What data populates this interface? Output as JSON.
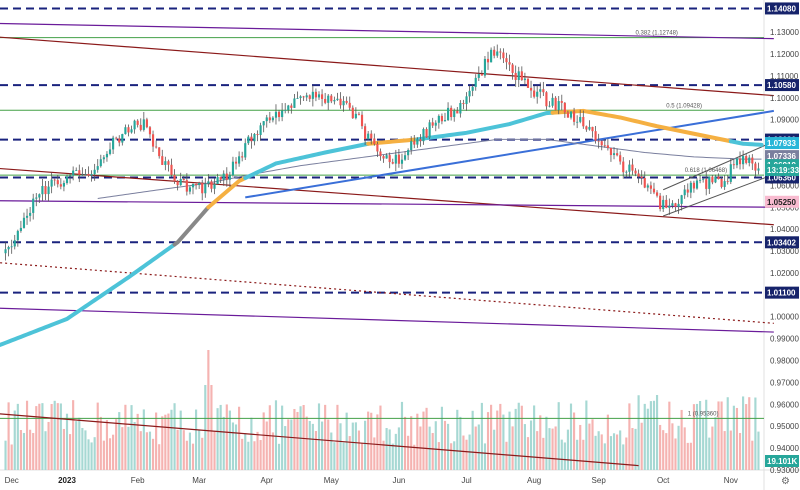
{
  "colors": {
    "up": "#26a69a",
    "down": "#ef5350",
    "wick": "#555555",
    "levels": "#1a237e",
    "fib": "#43a047",
    "channel": "#8b1a1a",
    "trend": "#6a1b9a",
    "ma_fast": "#4dc3d8",
    "ma_fast_alt": "#f5b042",
    "trendline_blue": "#3a6fd8",
    "ma_slow": "#7a7f9e",
    "price_badge": "#26a69a",
    "navy_badge": "#16236b"
  },
  "chart_data": {
    "type": "candlestick",
    "title": "",
    "y_axis": {
      "min": 0.93,
      "max": 1.141,
      "position": "right",
      "ticks": [
        "1.13000",
        "1.12000",
        "1.11000",
        "1.10000",
        "1.09000",
        "1.08000",
        "1.07000",
        "1.06000",
        "1.05000",
        "1.04000",
        "1.03000",
        "1.02000",
        "1.01000",
        "1.00000",
        "0.99000",
        "0.98000",
        "0.97000",
        "0.96000",
        "0.95000",
        "0.94000",
        "0.93000"
      ]
    },
    "x_axis": {
      "labels": [
        {
          "label": "Dec",
          "index": 2,
          "year": false
        },
        {
          "label": "2023",
          "index": 20,
          "year": true
        },
        {
          "label": "Feb",
          "index": 43,
          "year": false
        },
        {
          "label": "Mar",
          "index": 63,
          "year": false
        },
        {
          "label": "Apr",
          "index": 85,
          "year": false
        },
        {
          "label": "May",
          "index": 106,
          "year": false
        },
        {
          "label": "Jun",
          "index": 128,
          "year": false
        },
        {
          "label": "Jul",
          "index": 150,
          "year": false
        },
        {
          "label": "Aug",
          "index": 172,
          "year": false
        },
        {
          "label": "Sep",
          "index": 193,
          "year": false
        },
        {
          "label": "Oct",
          "index": 214,
          "year": false
        },
        {
          "label": "Nov",
          "index": 236,
          "year": false
        }
      ]
    },
    "candles_count": 246,
    "close_anchors": [
      [
        0,
        1.029
      ],
      [
        4,
        1.039
      ],
      [
        10,
        1.056
      ],
      [
        16,
        1.061
      ],
      [
        22,
        1.064
      ],
      [
        28,
        1.065
      ],
      [
        34,
        1.079
      ],
      [
        40,
        1.086
      ],
      [
        45,
        1.088
      ],
      [
        50,
        1.073
      ],
      [
        55,
        1.064
      ],
      [
        60,
        1.058
      ],
      [
        66,
        1.06
      ],
      [
        72,
        1.064
      ],
      [
        78,
        1.078
      ],
      [
        84,
        1.088
      ],
      [
        90,
        1.095
      ],
      [
        96,
        1.101
      ],
      [
        102,
        1.101
      ],
      [
        108,
        1.1
      ],
      [
        114,
        1.092
      ],
      [
        120,
        1.076
      ],
      [
        126,
        1.07
      ],
      [
        132,
        1.078
      ],
      [
        138,
        1.086
      ],
      [
        144,
        1.093
      ],
      [
        150,
        1.098
      ],
      [
        156,
        1.115
      ],
      [
        160,
        1.123
      ],
      [
        164,
        1.114
      ],
      [
        170,
        1.105
      ],
      [
        176,
        1.099
      ],
      [
        182,
        1.095
      ],
      [
        188,
        1.087
      ],
      [
        194,
        1.079
      ],
      [
        200,
        1.07
      ],
      [
        206,
        1.063
      ],
      [
        212,
        1.053
      ],
      [
        216,
        1.048
      ],
      [
        222,
        1.058
      ],
      [
        228,
        1.061
      ],
      [
        234,
        1.062
      ],
      [
        238,
        1.072
      ],
      [
        242,
        1.07
      ],
      [
        245,
        1.0692
      ]
    ],
    "horizontal_levels": [
      {
        "value": 1.1408,
        "label": "1.14080",
        "style": "dashed"
      },
      {
        "value": 1.1058,
        "label": "1.10580",
        "style": "dashed"
      },
      {
        "value": 1.0809,
        "label": "1.08090",
        "style": "dashed"
      },
      {
        "value": 1.0636,
        "label": "1.06360",
        "style": "dashed"
      },
      {
        "value": 1.034,
        "label": "1.03402",
        "style": "dashed"
      },
      {
        "value": 1.011,
        "label": "1.01100",
        "style": "dashed"
      }
    ],
    "fib_levels": [
      {
        "value": 1.12748,
        "label": "0.382 (1.12748)",
        "text_index": 205
      },
      {
        "value": 1.09428,
        "label": "0.5 (1.09428)",
        "text_index": 215
      },
      {
        "value": 1.06468,
        "label": "0.618 (1.06468)",
        "text_index": 221
      },
      {
        "value": 0.9536,
        "label": "1 (0.95360)",
        "text_index": 222
      }
    ],
    "trendlines": [
      {
        "kind": "channel",
        "from": [
          -5,
          1.128
        ],
        "to": [
          250,
          1.101
        ]
      },
      {
        "kind": "channel",
        "from": [
          -5,
          1.068
        ],
        "to": [
          250,
          1.042
        ]
      },
      {
        "kind": "trend",
        "from": [
          -5,
          1.134
        ],
        "to": [
          250,
          1.127
        ]
      },
      {
        "kind": "trend",
        "from": [
          -5,
          1.053
        ],
        "to": [
          250,
          1.05
        ]
      },
      {
        "kind": "trend",
        "from": [
          -5,
          1.004
        ],
        "to": [
          250,
          0.993
        ]
      },
      {
        "kind": "channel_dotted",
        "from": [
          -5,
          1.025
        ],
        "to": [
          250,
          0.997
        ]
      },
      {
        "kind": "channel",
        "from": [
          -5,
          0.956
        ],
        "to": [
          206,
          0.932
        ]
      },
      {
        "kind": "blue",
        "from": [
          78,
          1.0545
        ],
        "to": [
          250,
          1.094
        ]
      },
      {
        "kind": "wedge",
        "from": [
          214,
          1.058
        ],
        "to": [
          250,
          1.08
        ]
      },
      {
        "kind": "wedge",
        "from": [
          214,
          1.046
        ],
        "to": [
          250,
          1.065
        ]
      }
    ],
    "ma_fast_anchors": [
      [
        -2,
        0.987
      ],
      [
        20,
        0.999
      ],
      [
        40,
        1.018
      ],
      [
        56,
        1.034
      ],
      [
        66,
        1.05
      ],
      [
        76,
        1.062
      ],
      [
        88,
        1.07
      ],
      [
        104,
        1.075
      ],
      [
        118,
        1.079
      ],
      [
        134,
        1.081
      ],
      [
        150,
        1.084
      ],
      [
        164,
        1.088
      ],
      [
        176,
        1.093
      ],
      [
        188,
        1.094
      ],
      [
        200,
        1.091
      ],
      [
        212,
        1.087
      ],
      [
        226,
        1.083
      ],
      [
        240,
        1.079
      ],
      [
        246,
        1.0785
      ]
    ],
    "ma_slow_anchors": [
      [
        30,
        1.054
      ],
      [
        50,
        1.058
      ],
      [
        66,
        1.061
      ],
      [
        80,
        1.065
      ],
      [
        96,
        1.069
      ],
      [
        112,
        1.072
      ],
      [
        128,
        1.075
      ],
      [
        144,
        1.078
      ],
      [
        160,
        1.081
      ],
      [
        176,
        1.081
      ],
      [
        192,
        1.078
      ],
      [
        208,
        1.075
      ],
      [
        224,
        1.073
      ],
      [
        240,
        1.072
      ],
      [
        246,
        1.072
      ]
    ],
    "price_badges": [
      {
        "label": "1.07933",
        "value": 1.07933,
        "color": "#29b6d8"
      },
      {
        "label": "1.07336",
        "value": 1.07336,
        "color": "#7a7f9e"
      },
      {
        "label": "1.06919",
        "value": 1.06919,
        "color": "#26a69a"
      },
      {
        "label": "13:19:33",
        "value": 1.067,
        "color": "#26a69a"
      },
      {
        "label": "1.05250",
        "value": 1.0525,
        "color": "#f8bbd0",
        "dark_text": true
      }
    ],
    "volume": {
      "label": "19.101K",
      "scale_max": 100,
      "seed_values": [
        42,
        55,
        38,
        61,
        47,
        52,
        66,
        44,
        58,
        49
      ]
    }
  }
}
